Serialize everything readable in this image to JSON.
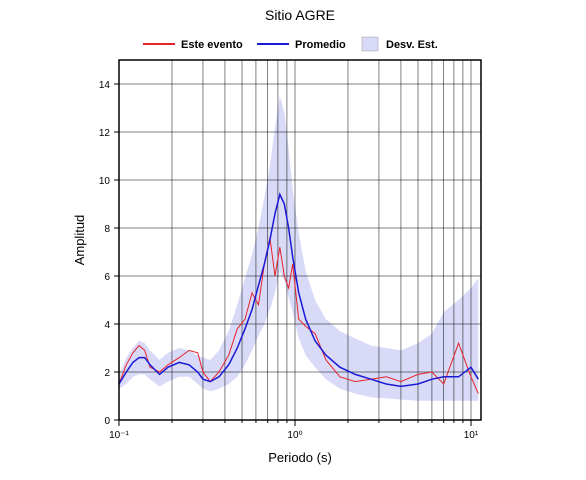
{
  "chart_data": {
    "type": "line",
    "title": "Sitio AGRE",
    "xlabel": "Periodo (s)",
    "ylabel": "Amplitud",
    "xscale": "log",
    "grid": true,
    "xlim": [
      0.1,
      11.4
    ],
    "ylim": [
      0,
      15
    ],
    "xticks": [
      {
        "value": 0.1,
        "label": "10⁻¹"
      },
      {
        "value": 1,
        "label": "10⁰"
      },
      {
        "value": 10,
        "label": "10¹"
      }
    ],
    "xminor_ticks": [
      0.2,
      0.3,
      0.4,
      0.5,
      0.6,
      0.7,
      0.8,
      0.9,
      2,
      3,
      4,
      5,
      6,
      7,
      8,
      9
    ],
    "yticks": [
      0,
      2,
      4,
      6,
      8,
      10,
      12,
      14
    ],
    "x": [
      0.1,
      0.11,
      0.12,
      0.13,
      0.14,
      0.15,
      0.17,
      0.19,
      0.22,
      0.25,
      0.28,
      0.3,
      0.33,
      0.37,
      0.42,
      0.47,
      0.52,
      0.57,
      0.62,
      0.67,
      0.72,
      0.77,
      0.82,
      0.87,
      0.92,
      0.97,
      1.05,
      1.15,
      1.3,
      1.5,
      1.8,
      2.2,
      2.7,
      3.3,
      4,
      5,
      6,
      7,
      8.5,
      10,
      11
    ],
    "band": {
      "name": "Desv. Est.",
      "color": "#d8daf7",
      "upper": [
        1.9,
        2.6,
        3.0,
        3.3,
        3.2,
        2.9,
        2.5,
        2.8,
        3.0,
        2.9,
        2.7,
        2.6,
        2.5,
        2.9,
        3.7,
        4.8,
        5.9,
        6.9,
        8.0,
        9.3,
        10.6,
        12.2,
        13.5,
        12.8,
        11.3,
        9.6,
        7.8,
        6.2,
        5.0,
        4.2,
        3.7,
        3.4,
        3.1,
        3.0,
        2.9,
        3.2,
        3.6,
        4.5,
        5.0,
        5.5,
        5.9
      ],
      "lower": [
        1.3,
        1.5,
        1.8,
        1.9,
        1.9,
        1.7,
        1.4,
        1.6,
        1.8,
        1.8,
        1.5,
        1.3,
        1.2,
        1.3,
        1.5,
        1.8,
        2.3,
        2.9,
        3.5,
        4.0,
        4.6,
        5.3,
        6.2,
        5.8,
        5.1,
        4.5,
        3.4,
        2.7,
        2.2,
        1.7,
        1.3,
        1.1,
        0.95,
        0.9,
        0.85,
        0.8,
        0.8,
        0.8,
        0.8,
        0.8,
        0.8
      ]
    },
    "series": [
      {
        "name": "Este evento",
        "color": "#e8222a",
        "values": [
          1.5,
          2.3,
          2.8,
          3.1,
          2.9,
          2.2,
          2.0,
          2.3,
          2.6,
          2.9,
          2.8,
          2.0,
          1.6,
          2.0,
          2.7,
          3.8,
          4.2,
          5.3,
          4.8,
          6.5,
          7.6,
          6.0,
          7.2,
          6.0,
          5.5,
          6.5,
          4.2,
          3.9,
          3.6,
          2.5,
          1.8,
          1.6,
          1.7,
          1.8,
          1.6,
          1.9,
          2.0,
          1.5,
          3.2,
          1.8,
          1.1
        ]
      },
      {
        "name": "Promedio",
        "color": "#1a1ad6",
        "values": [
          1.5,
          2.0,
          2.4,
          2.6,
          2.6,
          2.3,
          1.9,
          2.2,
          2.4,
          2.3,
          2.0,
          1.7,
          1.6,
          1.8,
          2.3,
          3.0,
          3.8,
          4.6,
          5.6,
          6.5,
          7.5,
          8.6,
          9.4,
          9.0,
          8.0,
          6.8,
          5.3,
          4.2,
          3.3,
          2.7,
          2.2,
          1.9,
          1.7,
          1.5,
          1.4,
          1.5,
          1.7,
          1.8,
          1.8,
          2.2,
          1.7
        ]
      }
    ]
  }
}
